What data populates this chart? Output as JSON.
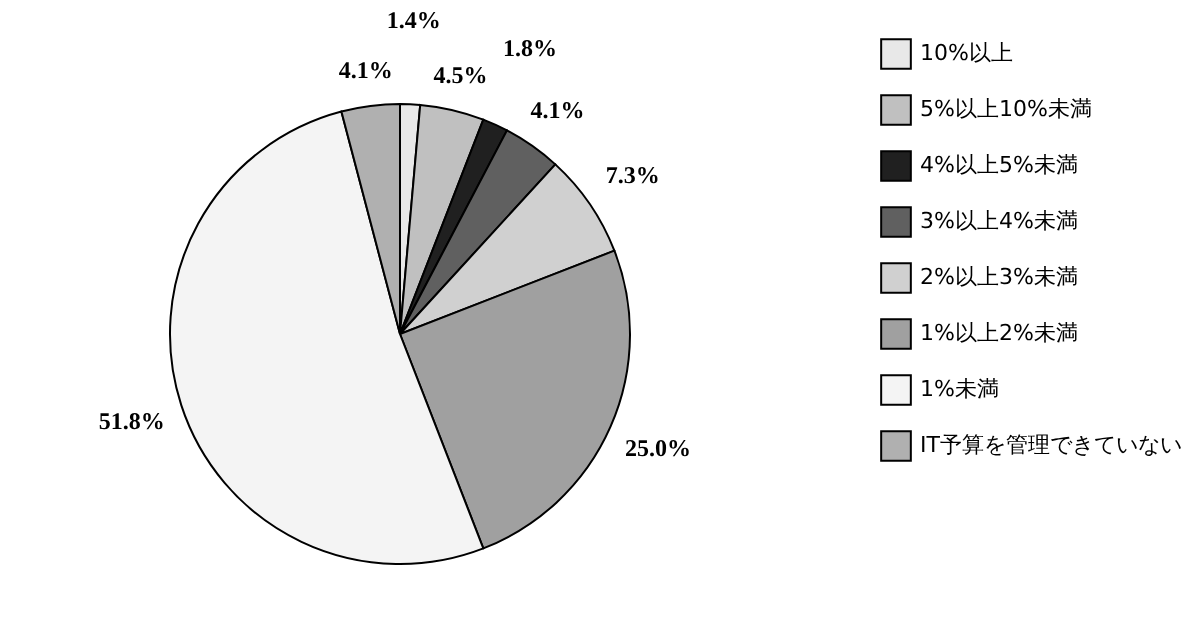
{
  "chart_data": {
    "type": "pie",
    "categories": [
      "10%以上",
      "5%以上10%未満",
      "4%以上5%未満",
      "3%以上4%未満",
      "2%以上3%未満",
      "1%以上2%未満",
      "1%未満",
      "IT予算を管理できていない"
    ],
    "values": [
      1.4,
      4.5,
      1.8,
      4.1,
      7.3,
      25.0,
      51.8,
      4.1
    ],
    "value_labels": [
      "1.4%",
      "4.5%",
      "1.8%",
      "4.1%",
      "7.3%",
      "25.0%",
      "51.8%",
      "4.1%"
    ],
    "colors": [
      "#e8e8e8",
      "#c0c0c0",
      "#202020",
      "#606060",
      "#d0d0d0",
      "#a0a0a0",
      "#f4f4f4",
      "#b0b0b0"
    ],
    "legend": "right"
  }
}
